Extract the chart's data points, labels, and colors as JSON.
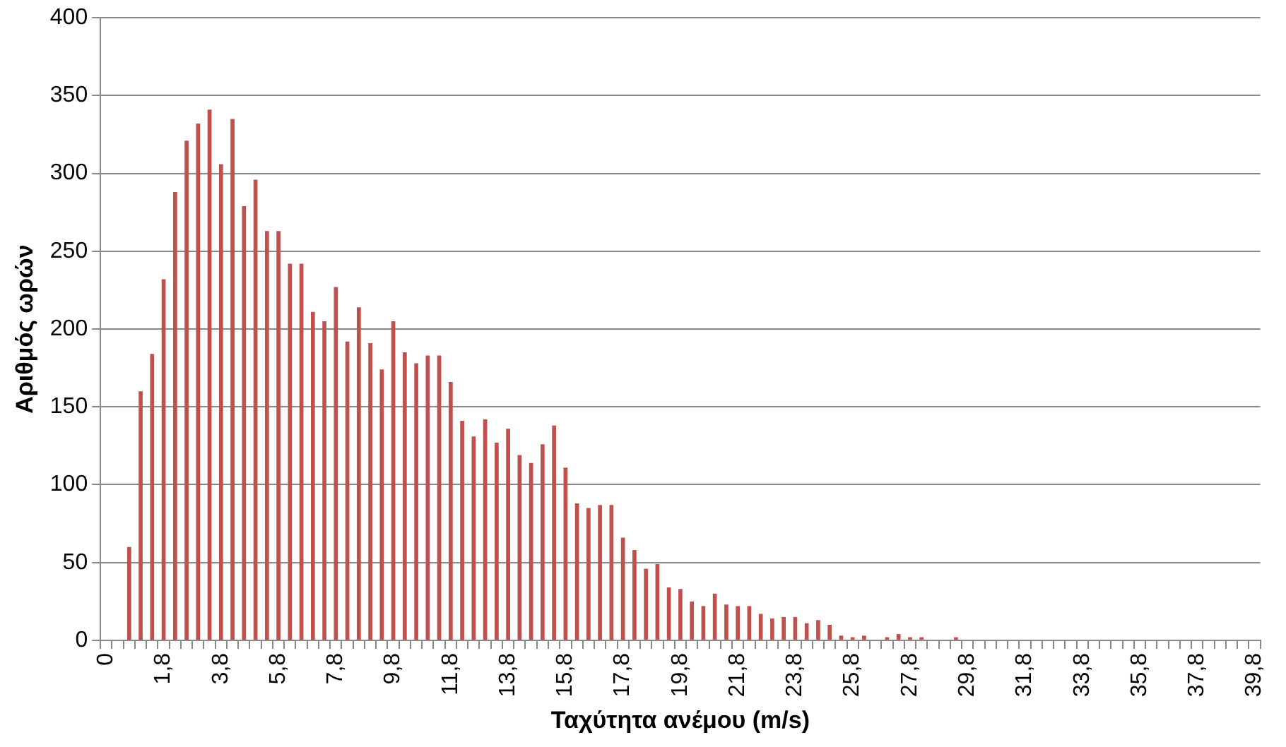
{
  "chart_data": {
    "type": "bar",
    "xlabel": "Ταχύτητα ανέμου (m/s)",
    "ylabel": "Αριθμός ωρών",
    "categories": [
      "0",
      null,
      null,
      null,
      null,
      "1,8",
      null,
      null,
      null,
      null,
      "3,8",
      null,
      null,
      null,
      null,
      "5,8",
      null,
      null,
      null,
      null,
      "7,8",
      null,
      null,
      null,
      null,
      "9,8",
      null,
      null,
      null,
      null,
      "11,8",
      null,
      null,
      null,
      null,
      "13,8",
      null,
      null,
      null,
      null,
      "15,8",
      null,
      null,
      null,
      null,
      "17,8",
      null,
      null,
      null,
      null,
      "19,8",
      null,
      null,
      null,
      null,
      "21,8",
      null,
      null,
      null,
      null,
      "23,8",
      null,
      null,
      null,
      null,
      "25,8",
      null,
      null,
      null,
      null,
      "27,8",
      null,
      null,
      null,
      null,
      "29,8",
      null,
      null,
      null,
      null,
      "31,8",
      null,
      null,
      null,
      null,
      "33,8",
      null,
      null,
      null,
      null,
      "35,8",
      null,
      null,
      null,
      null,
      "37,8",
      null,
      null,
      null,
      null,
      "39,8"
    ],
    "series": [
      {
        "color": "#c0504d",
        "values": [
          0,
          0,
          60,
          160,
          184,
          232,
          288,
          321,
          332,
          341,
          306,
          335,
          279,
          296,
          263,
          263,
          242,
          242,
          211,
          205,
          227,
          192,
          214,
          191,
          174,
          205,
          185,
          178,
          183,
          183,
          166,
          141,
          131,
          142,
          127,
          136,
          119,
          114,
          126,
          138,
          111,
          88,
          85,
          87,
          87,
          66,
          58,
          46,
          49,
          34,
          33,
          25,
          22,
          30,
          23,
          22,
          22,
          17,
          14,
          15,
          15,
          11,
          13,
          10,
          3,
          2,
          3,
          0,
          2,
          4,
          2,
          2,
          0,
          0,
          2,
          0,
          0,
          0,
          0,
          0,
          0,
          0,
          0,
          0,
          0,
          0,
          0,
          0,
          0,
          0,
          0,
          0,
          0,
          0,
          0,
          0,
          0,
          0,
          0,
          0,
          0
        ]
      }
    ],
    "ylim": [
      0,
      400
    ],
    "yticks": [
      0,
      50,
      100,
      150,
      200,
      250,
      300,
      350,
      400
    ],
    "grid": "y",
    "legend": false
  }
}
